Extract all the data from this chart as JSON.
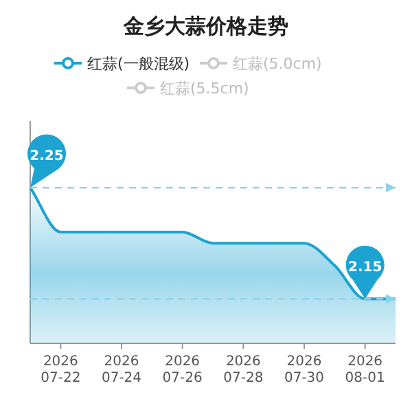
{
  "chart_data": {
    "type": "area",
    "title": "金乡大蒜价格走势",
    "x": [
      "2026-07-21",
      "2026-07-22",
      "2026-07-23",
      "2026-07-24",
      "2026-07-25",
      "2026-07-26",
      "2026-07-27",
      "2026-07-28",
      "2026-07-29",
      "2026-07-30",
      "2026-07-31",
      "2026-08-01",
      "2026-08-02"
    ],
    "series": [
      {
        "name": "红蒜(一般混级)",
        "color": "#1ca3d2",
        "values": [
          2.25,
          2.21,
          2.21,
          2.21,
          2.21,
          2.21,
          2.2,
          2.2,
          2.2,
          2.2,
          2.18,
          2.15,
          2.15
        ],
        "value_labels": [
          "2.25",
          null,
          null,
          null,
          null,
          null,
          null,
          null,
          null,
          null,
          null,
          "2.15",
          null
        ]
      },
      {
        "name": "红蒜(5.0cm)",
        "color": "#cccccc",
        "values": [
          null,
          null,
          null,
          null,
          null,
          null,
          null,
          null,
          null,
          null,
          null,
          null,
          null
        ]
      },
      {
        "name": "红蒜(5.5cm)",
        "color": "#cccccc",
        "values": [
          null,
          null,
          null,
          null,
          null,
          null,
          null,
          null,
          null,
          null,
          null,
          null,
          null
        ]
      }
    ],
    "xlim": [
      "2026-07-21",
      "2026-08-02"
    ],
    "xticks": [
      {
        "value": "2026-07-22",
        "label": "2026\n07-22"
      },
      {
        "value": "2026-07-24",
        "label": "2026\n07-24"
      },
      {
        "value": "2026-07-26",
        "label": "2026\n07-26"
      },
      {
        "value": "2026-07-28",
        "label": "2026\n07-28"
      },
      {
        "value": "2026-07-30",
        "label": "2026\n07-30"
      },
      {
        "value": "2026-08-01",
        "label": "2026\n08-01"
      }
    ],
    "ylim": [
      2.11,
      2.31
    ],
    "ref_lines": [
      {
        "axis": "y",
        "value": 2.25,
        "color": "#8fd3ea",
        "line_style": "dashed"
      },
      {
        "axis": "y",
        "value": 2.15,
        "color": "#8fd3ea",
        "line_style": "dashed"
      }
    ],
    "legend": "top",
    "marker": "none",
    "line_style": "solid",
    "tick_labels": "x"
  }
}
